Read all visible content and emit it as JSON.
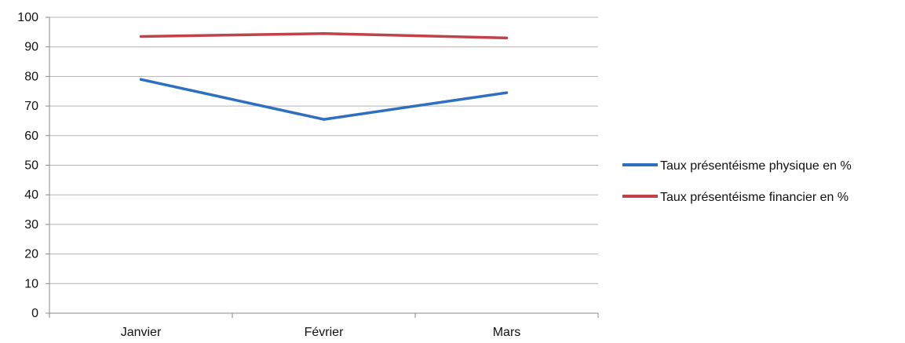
{
  "chart_data": {
    "type": "line",
    "title": "",
    "xlabel": "",
    "ylabel": "",
    "categories": [
      "Janvier",
      "Février",
      "Mars"
    ],
    "ylim": [
      0,
      100
    ],
    "yticks": [
      "0",
      "10",
      "20",
      "30",
      "40",
      "50",
      "60",
      "70",
      "80",
      "90",
      "100"
    ],
    "grid": true,
    "legend_position": "right",
    "series": [
      {
        "name": "Taux présentéisme physique en %",
        "values": [
          79,
          65.5,
          74.5
        ],
        "color": "#2f6fbf"
      },
      {
        "name": "Taux présentéisme financier en %",
        "values": [
          93.5,
          94.5,
          93
        ],
        "color": "#c1434a"
      }
    ]
  }
}
